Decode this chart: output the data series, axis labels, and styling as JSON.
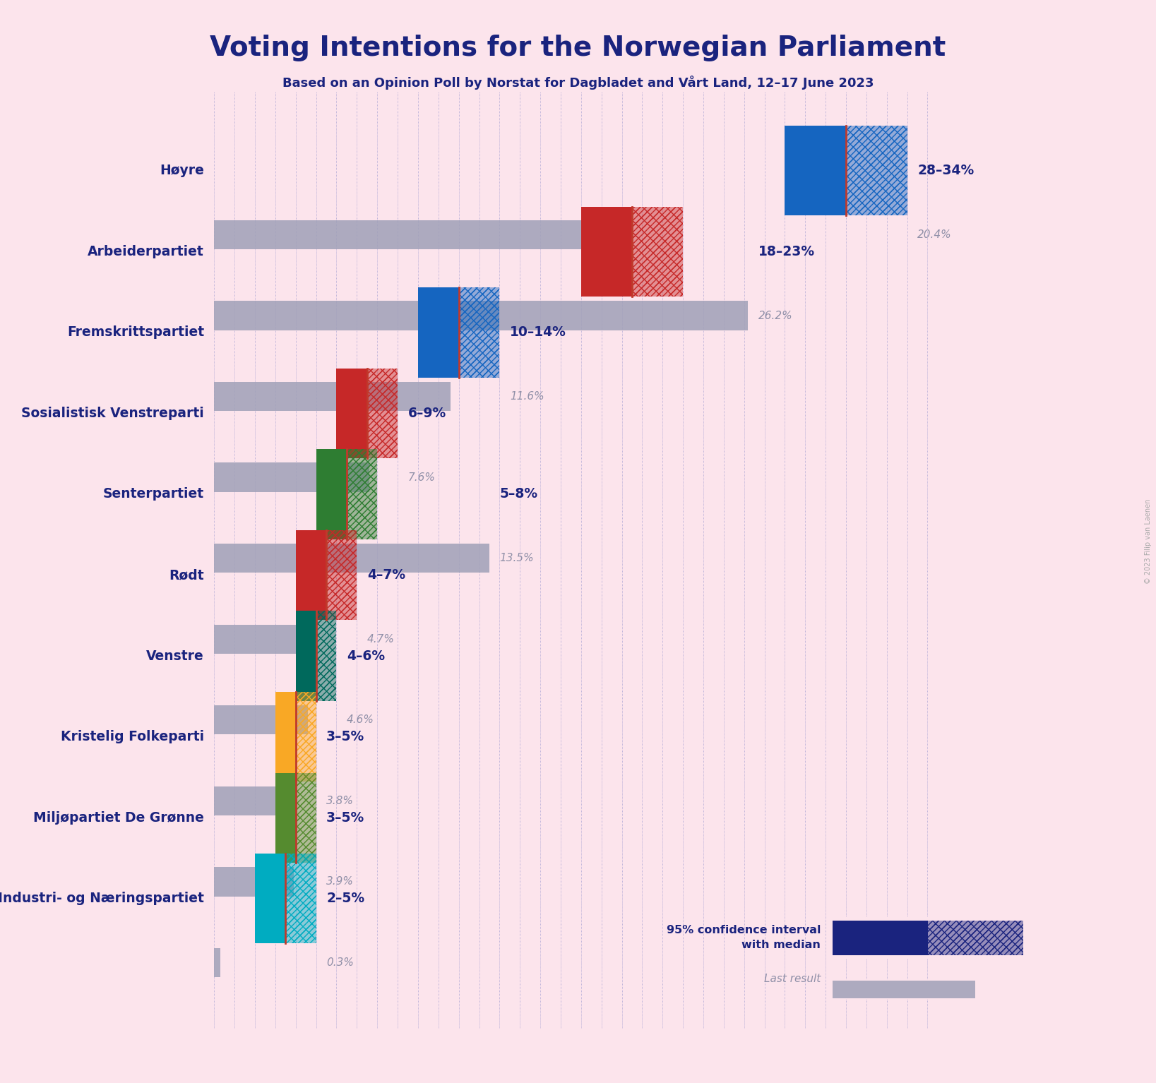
{
  "title": "Voting Intentions for the Norwegian Parliament",
  "subtitle": "Based on an Opinion Poll by Norstat for Dagbladet and Vårt Land, 12–17 June 2023",
  "copyright": "© 2023 Filip van Laenen",
  "background_color": "#fce4ec",
  "title_color": "#1a237e",
  "subtitle_color": "#1a237e",
  "parties": [
    {
      "name": "Høyre",
      "ci_low": 28,
      "ci_high": 34,
      "median": 31,
      "last_result": 20.4,
      "color": "#1565c0",
      "label": "28–34%",
      "last_label": "20.4%"
    },
    {
      "name": "Arbeiderpartiet",
      "ci_low": 18,
      "ci_high": 23,
      "median": 20.5,
      "last_result": 26.2,
      "color": "#c62828",
      "label": "18–23%",
      "last_label": "26.2%"
    },
    {
      "name": "Fremskrittspartiet",
      "ci_low": 10,
      "ci_high": 14,
      "median": 12,
      "last_result": 11.6,
      "color": "#1565c0",
      "label": "10–14%",
      "last_label": "11.6%"
    },
    {
      "name": "Sosialistisk Venstreparti",
      "ci_low": 6,
      "ci_high": 9,
      "median": 7.5,
      "last_result": 7.6,
      "color": "#c62828",
      "label": "6–9%",
      "last_label": "7.6%"
    },
    {
      "name": "Senterpartiet",
      "ci_low": 5,
      "ci_high": 8,
      "median": 6.5,
      "last_result": 13.5,
      "color": "#2e7d32",
      "label": "5–8%",
      "last_label": "13.5%"
    },
    {
      "name": "Rødt",
      "ci_low": 4,
      "ci_high": 7,
      "median": 5.5,
      "last_result": 4.7,
      "color": "#c62828",
      "label": "4–7%",
      "last_label": "4.7%"
    },
    {
      "name": "Venstre",
      "ci_low": 4,
      "ci_high": 6,
      "median": 5,
      "last_result": 4.6,
      "color": "#00695c",
      "label": "4–6%",
      "last_label": "4.6%"
    },
    {
      "name": "Kristelig Folkeparti",
      "ci_low": 3,
      "ci_high": 5,
      "median": 4,
      "last_result": 3.8,
      "color": "#f9a825",
      "label": "3–5%",
      "last_label": "3.8%"
    },
    {
      "name": "Miljøpartiet De Grønne",
      "ci_low": 3,
      "ci_high": 5,
      "median": 4,
      "last_result": 3.9,
      "color": "#558b2f",
      "label": "3–5%",
      "last_label": "3.9%"
    },
    {
      "name": "Industri- og Næringspartiet",
      "ci_low": 2,
      "ci_high": 5,
      "median": 3.5,
      "last_result": 0.3,
      "color": "#00acc1",
      "label": "2–5%",
      "last_label": "0.3%"
    }
  ],
  "x_max": 36,
  "median_line_color": "#c0392b",
  "last_result_color": "#a0a0b8",
  "label_color": "#1a237e",
  "last_label_color": "#9090a8"
}
